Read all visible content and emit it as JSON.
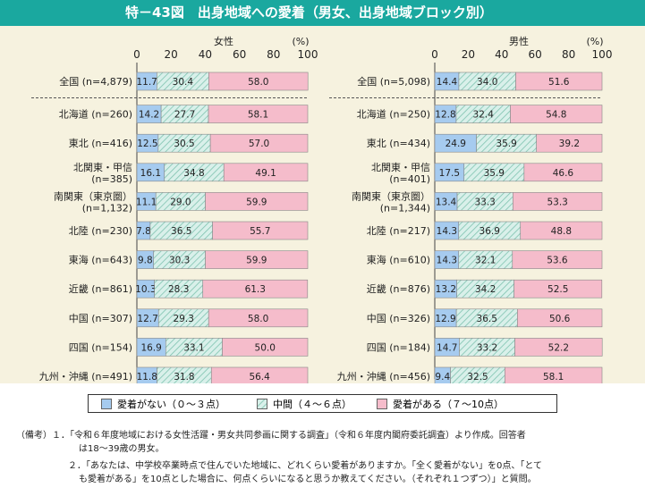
{
  "title": "特－43図　出身地域への愛着（男女、出身地域ブロック別）",
  "colors": {
    "low": "#a6cbef",
    "mid": "#d3ede6",
    "high": "#f5bccb",
    "header": "#1aa89f",
    "panel": "#f6f2df"
  },
  "legend": [
    {
      "key": "low",
      "label": "愛着がない（０～３点）"
    },
    {
      "key": "mid",
      "label": "中間（４～６点）"
    },
    {
      "key": "high",
      "label": "愛着がある（７～10点）"
    }
  ],
  "chart_data": [
    {
      "type": "bar",
      "stacked": true,
      "orientation": "horizontal",
      "title": "女性",
      "unit": "(%)",
      "ticks": [
        0,
        20,
        40,
        60,
        80,
        100
      ],
      "xlim": [
        0,
        100
      ],
      "categories": [
        [
          "全国 (n=4,879)"
        ],
        [
          "北海道 (n=260)"
        ],
        [
          "東北 (n=416)"
        ],
        [
          "北関東・甲信",
          "(n=385)"
        ],
        [
          "南関東（東京圏）",
          "(n=1,132)"
        ],
        [
          "北陸 (n=230)"
        ],
        [
          "東海 (n=643)"
        ],
        [
          "近畿 (n=861)"
        ],
        [
          "中国 (n=307)"
        ],
        [
          "四国 (n=154)"
        ],
        [
          "九州・沖縄 (n=491)"
        ]
      ],
      "series": [
        {
          "key": "low",
          "values": [
            11.7,
            14.2,
            12.5,
            16.1,
            11.1,
            7.8,
            9.8,
            10.3,
            12.7,
            16.9,
            11.8
          ]
        },
        {
          "key": "mid",
          "values": [
            30.4,
            27.7,
            30.5,
            34.8,
            29.0,
            36.5,
            30.3,
            28.3,
            29.3,
            33.1,
            31.8
          ]
        },
        {
          "key": "high",
          "values": [
            58.0,
            58.1,
            57.0,
            49.1,
            59.9,
            55.7,
            59.9,
            61.3,
            58.0,
            50.0,
            56.4
          ]
        }
      ]
    },
    {
      "type": "bar",
      "stacked": true,
      "orientation": "horizontal",
      "title": "男性",
      "unit": "(%)",
      "ticks": [
        0,
        20,
        40,
        60,
        80,
        100
      ],
      "xlim": [
        0,
        100
      ],
      "categories": [
        [
          "全国 (n=5,098)"
        ],
        [
          "北海道 (n=250)"
        ],
        [
          "東北 (n=434)"
        ],
        [
          "北関東・甲信",
          "(n=401)"
        ],
        [
          "南関東（東京圏）",
          "(n=1,344)"
        ],
        [
          "北陸 (n=217)"
        ],
        [
          "東海 (n=610)"
        ],
        [
          "近畿 (n=876)"
        ],
        [
          "中国 (n=326)"
        ],
        [
          "四国 (n=184)"
        ],
        [
          "九州・沖縄 (n=456)"
        ]
      ],
      "series": [
        {
          "key": "low",
          "values": [
            14.4,
            12.8,
            24.9,
            17.5,
            13.4,
            14.3,
            14.3,
            13.2,
            12.9,
            14.7,
            9.4
          ]
        },
        {
          "key": "mid",
          "values": [
            34.0,
            32.4,
            35.9,
            35.9,
            33.3,
            36.9,
            32.1,
            34.2,
            36.5,
            33.2,
            32.5
          ]
        },
        {
          "key": "high",
          "values": [
            51.6,
            54.8,
            39.2,
            46.6,
            53.3,
            48.8,
            53.6,
            52.5,
            50.6,
            52.2,
            58.1
          ]
        }
      ]
    }
  ],
  "notes": [
    "（備考）１．「令和６年度地域における女性活躍・男女共同参画に関する調査」（令和６年度内閣府委託調査）より作成。回答者",
    "は18～39歳の男女。",
    "２．「あなたは、中学校卒業時点で住んでいた地域に、どれくらい愛着がありますか。「全く愛着がない」を0点、「とて",
    "も愛着がある」を10点とした場合に、何点くらいになると思うか教えてください。（それぞれ１つずつ）」と質問。"
  ]
}
